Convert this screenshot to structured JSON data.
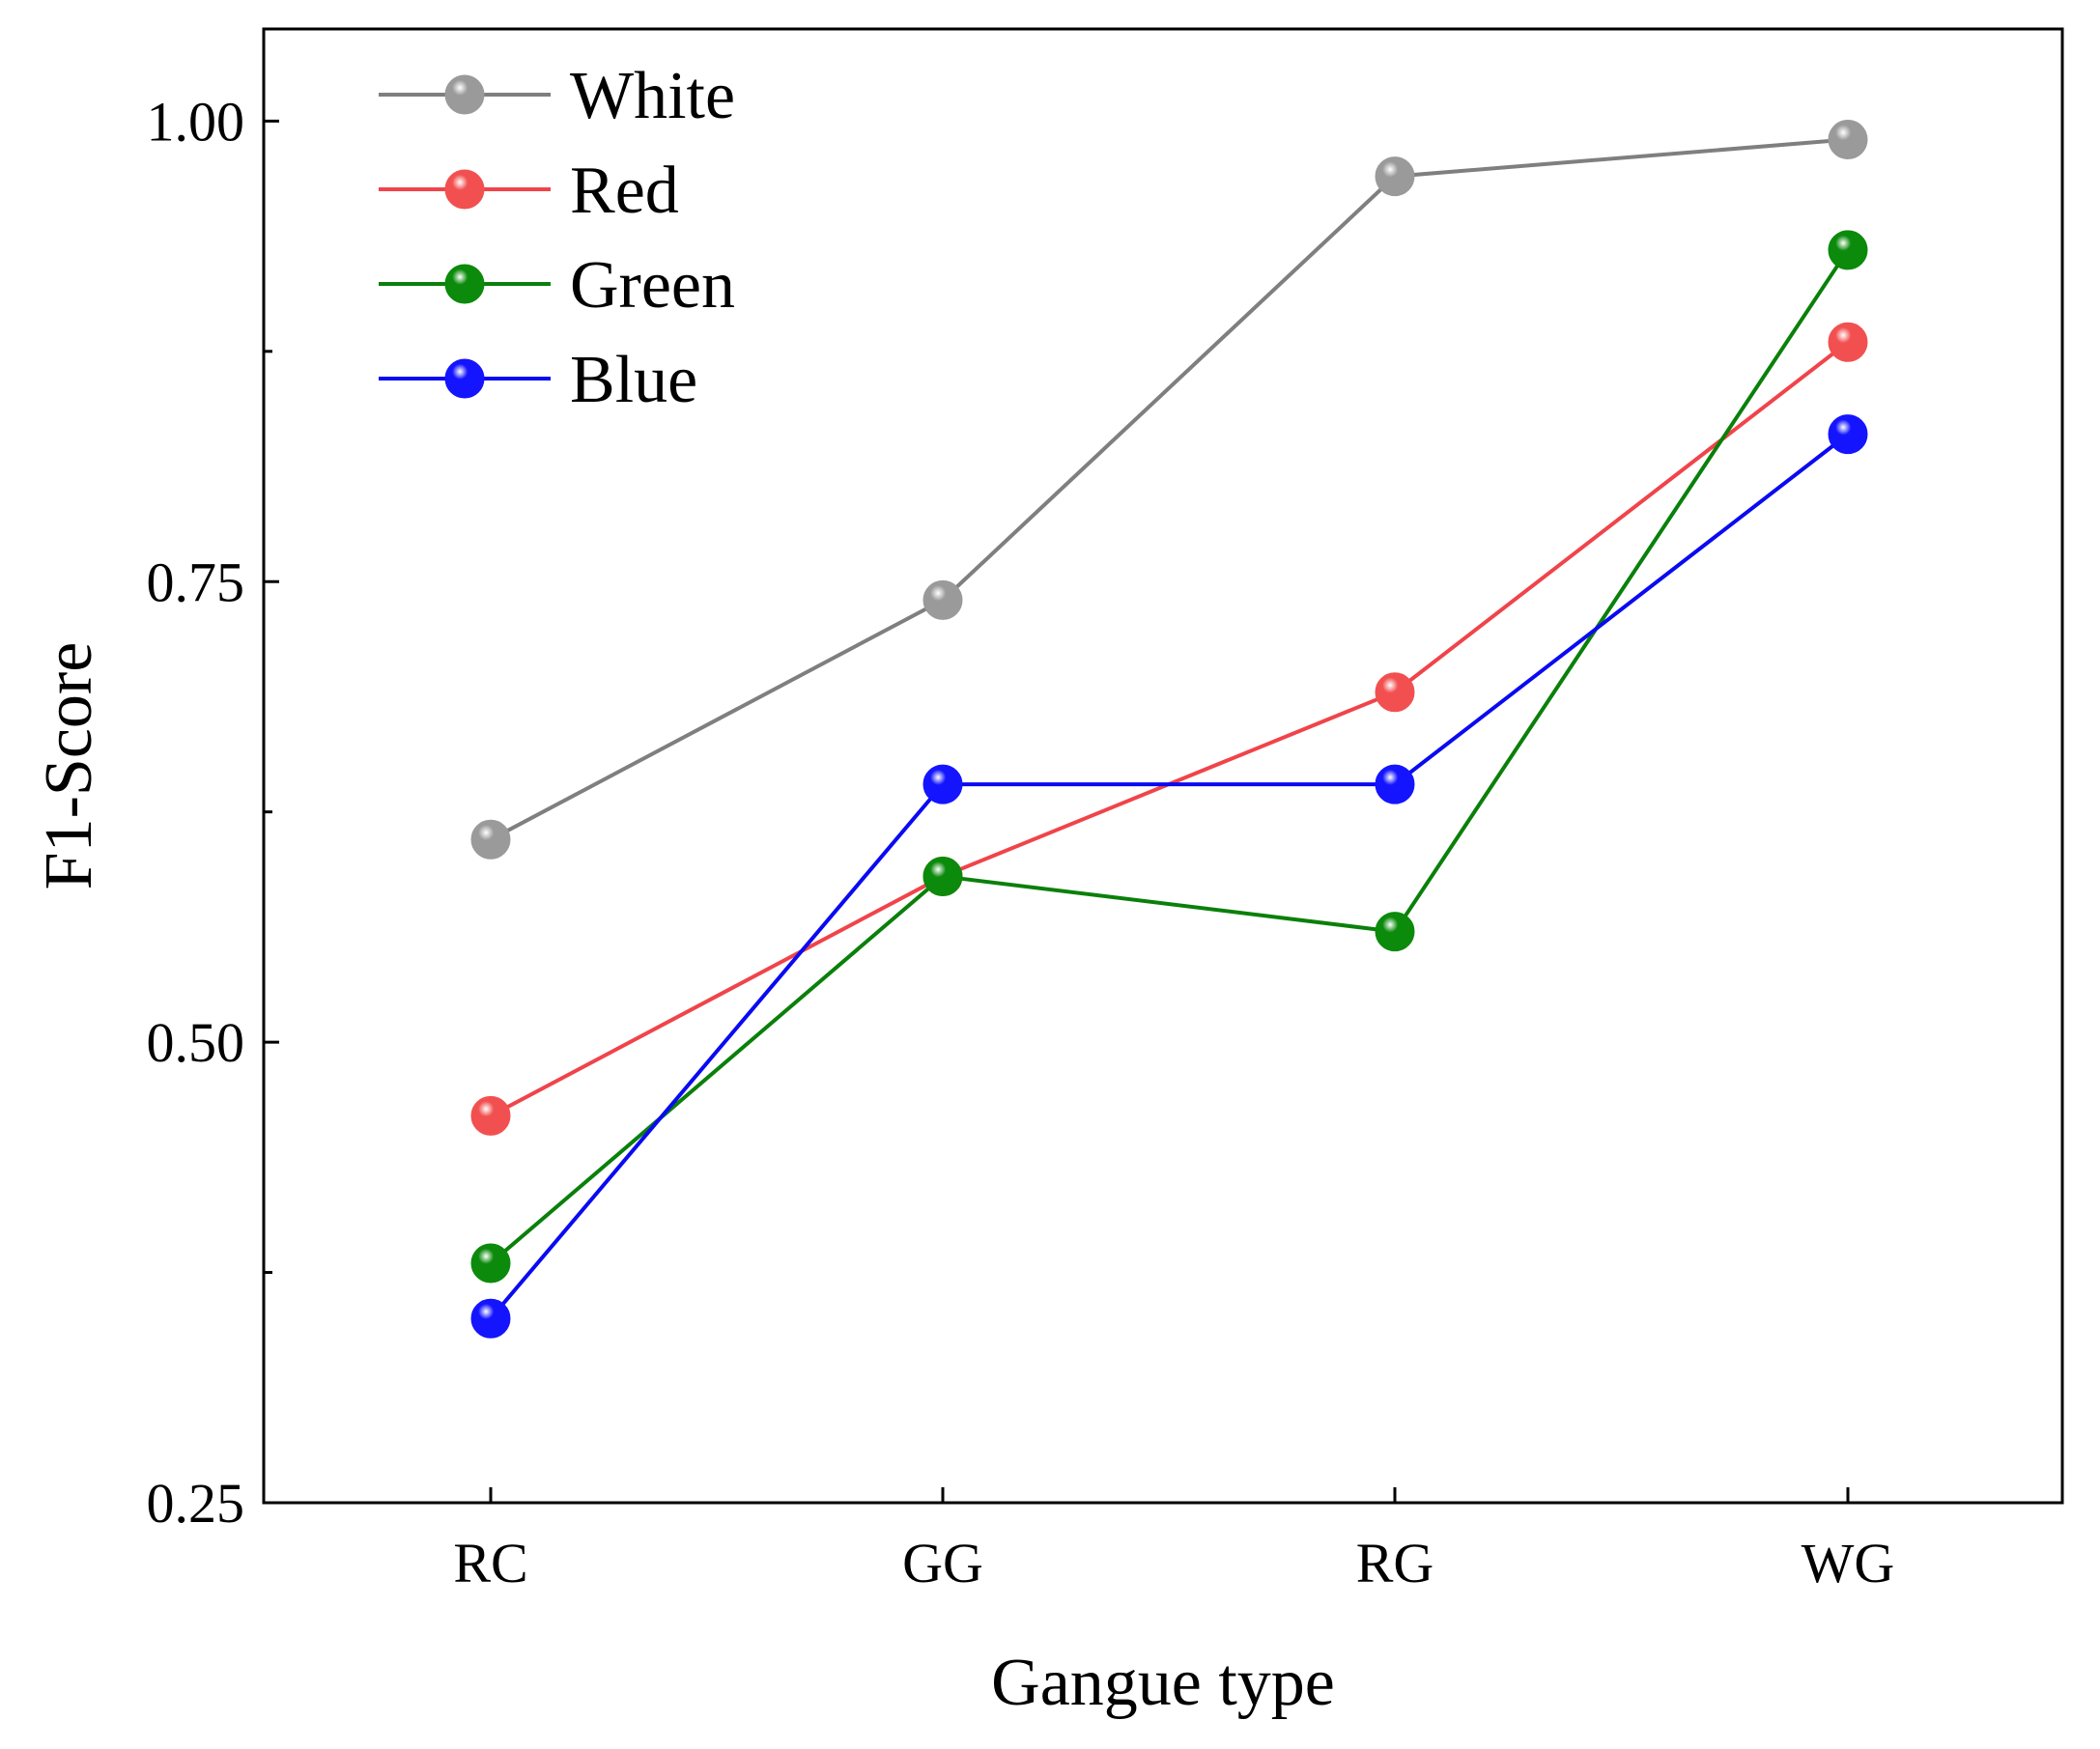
{
  "chart_data": {
    "type": "line",
    "title": "",
    "xlabel": "Gangue type",
    "ylabel": "F1-Score",
    "categories": [
      "RC",
      "GG",
      "RG",
      "WG"
    ],
    "ylim": [
      0.25,
      1.05
    ],
    "yticks_major": [
      0.25,
      0.5,
      0.75,
      1.0
    ],
    "ytick_labels": [
      "0.25",
      "0.50",
      "0.75",
      "1.00"
    ],
    "yticks_minor": [
      0.375,
      0.625,
      0.875
    ],
    "legend_position": "top-left",
    "grid": false,
    "series": [
      {
        "name": "White",
        "color": "#7f7f7f",
        "marker_color": "#9a9a9a",
        "values": [
          0.61,
          0.74,
          0.97,
          0.99
        ]
      },
      {
        "name": "Red",
        "color": "#f0444a",
        "marker_color": "#f25050",
        "values": [
          0.46,
          0.59,
          0.69,
          0.88
        ]
      },
      {
        "name": "Green",
        "color": "#0a800a",
        "marker_color": "#0b8a0b",
        "values": [
          0.38,
          0.59,
          0.56,
          0.93
        ]
      },
      {
        "name": "Blue",
        "color": "#0a0af2",
        "marker_color": "#1414ff",
        "values": [
          0.35,
          0.64,
          0.64,
          0.83
        ]
      }
    ]
  }
}
